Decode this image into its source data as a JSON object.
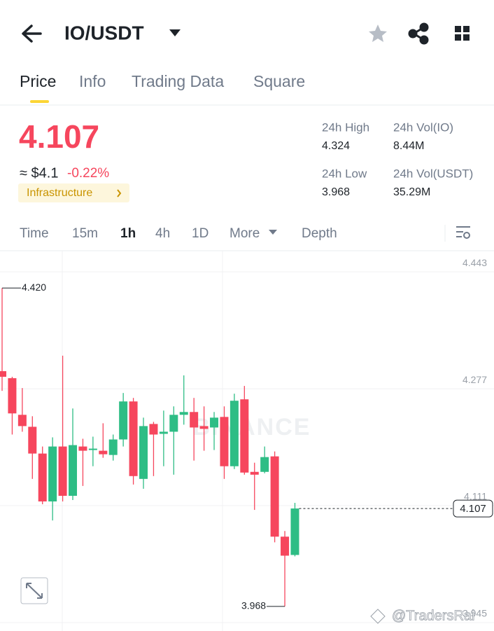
{
  "header": {
    "title": "IO/USDT"
  },
  "tabs": [
    "Price",
    "Info",
    "Trading Data",
    "Square"
  ],
  "price": {
    "last": "4.107",
    "fiat": "≈ $4.1",
    "change": "-0.22%",
    "tag": "Infrastructure"
  },
  "stats": [
    {
      "label": "24h High",
      "value": "4.324"
    },
    {
      "label": "24h Vol(IO)",
      "value": "8.44M"
    },
    {
      "label": "24h Low",
      "value": "3.968"
    },
    {
      "label": "24h Vol(USDT)",
      "value": "35.29M"
    }
  ],
  "intervals": [
    "Time",
    "15m",
    "1h",
    "4h",
    "1D",
    "More",
    "Depth"
  ],
  "watermarks": [
    "BINANCE",
    "@TradersRai"
  ],
  "chart_data": {
    "type": "candlestick",
    "open": [
      4.302,
      4.292,
      4.24,
      4.223,
      4.185,
      4.117,
      4.195,
      4.125,
      4.195,
      4.19,
      4.189,
      4.183,
      4.205,
      4.259,
      4.149,
      4.227,
      4.213,
      4.216,
      4.24,
      4.244,
      4.224,
      4.222,
      4.237,
      4.167,
      4.262,
      4.159,
      4.159,
      4.181,
      4.067,
      4.041
    ],
    "high": [
      4.42,
      4.294,
      4.278,
      4.238,
      4.195,
      4.208,
      4.324,
      4.249,
      4.206,
      4.209,
      4.228,
      4.212,
      4.271,
      4.264,
      4.236,
      4.23,
      4.246,
      4.252,
      4.296,
      4.264,
      4.252,
      4.244,
      4.252,
      4.27,
      4.281,
      4.172,
      4.195,
      4.188,
      4.075,
      4.115
    ],
    "low": [
      4.274,
      4.212,
      4.216,
      4.149,
      4.113,
      4.09,
      4.117,
      4.119,
      4.139,
      4.167,
      4.179,
      4.175,
      4.195,
      4.141,
      4.135,
      4.153,
      4.167,
      4.155,
      4.226,
      4.175,
      4.189,
      4.19,
      4.149,
      4.163,
      4.155,
      4.105,
      4.157,
      4.059,
      3.968,
      4.039
    ],
    "close": [
      4.294,
      4.242,
      4.224,
      4.185,
      4.117,
      4.195,
      4.125,
      4.197,
      4.189,
      4.192,
      4.184,
      4.205,
      4.259,
      4.153,
      4.224,
      4.212,
      4.216,
      4.24,
      4.244,
      4.222,
      4.22,
      4.236,
      4.167,
      4.26,
      4.158,
      4.155,
      4.18,
      4.067,
      4.04,
      4.107
    ],
    "up_color": "#2ebd85",
    "down_color": "#f6465d",
    "ylim": [
      3.941,
      4.473
    ],
    "yticks": [
      4.443,
      4.277,
      4.111,
      3.945
    ],
    "grid": true,
    "annotations": [
      {
        "value": 4.42,
        "label": "4.420"
      },
      {
        "value": 3.968,
        "label": "3.968"
      }
    ],
    "last_price": {
      "value": 4.107,
      "label": "4.107"
    }
  }
}
